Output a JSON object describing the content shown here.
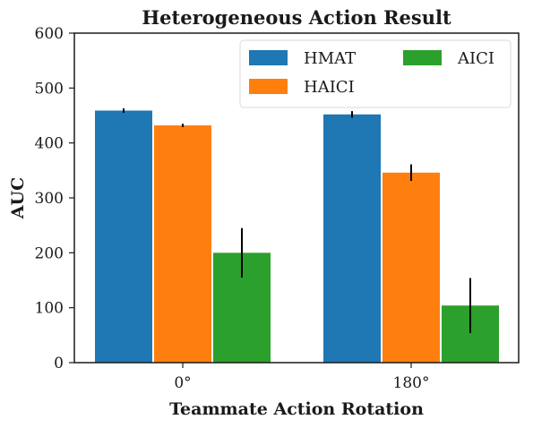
{
  "chart_data": {
    "type": "bar",
    "title": "Heterogeneous Action Result",
    "xlabel": "Teammate Action Rotation",
    "ylabel": "AUC",
    "categories": [
      "0°",
      "180°"
    ],
    "ylim": [
      0,
      600
    ],
    "yticks": [
      0,
      100,
      200,
      300,
      400,
      500,
      600
    ],
    "grid": false,
    "legend": {
      "position": "top-right",
      "columns": 2
    },
    "series": [
      {
        "name": "HMAT",
        "color": "#1f77b4",
        "values": [
          459,
          452
        ],
        "errors": [
          4,
          6
        ]
      },
      {
        "name": "HAICI",
        "color": "#ff7f0e",
        "values": [
          432,
          346
        ],
        "errors": [
          3,
          15
        ]
      },
      {
        "name": "AICI",
        "color": "#2ca02c",
        "values": [
          200,
          104
        ],
        "errors": [
          45,
          50
        ]
      }
    ]
  }
}
